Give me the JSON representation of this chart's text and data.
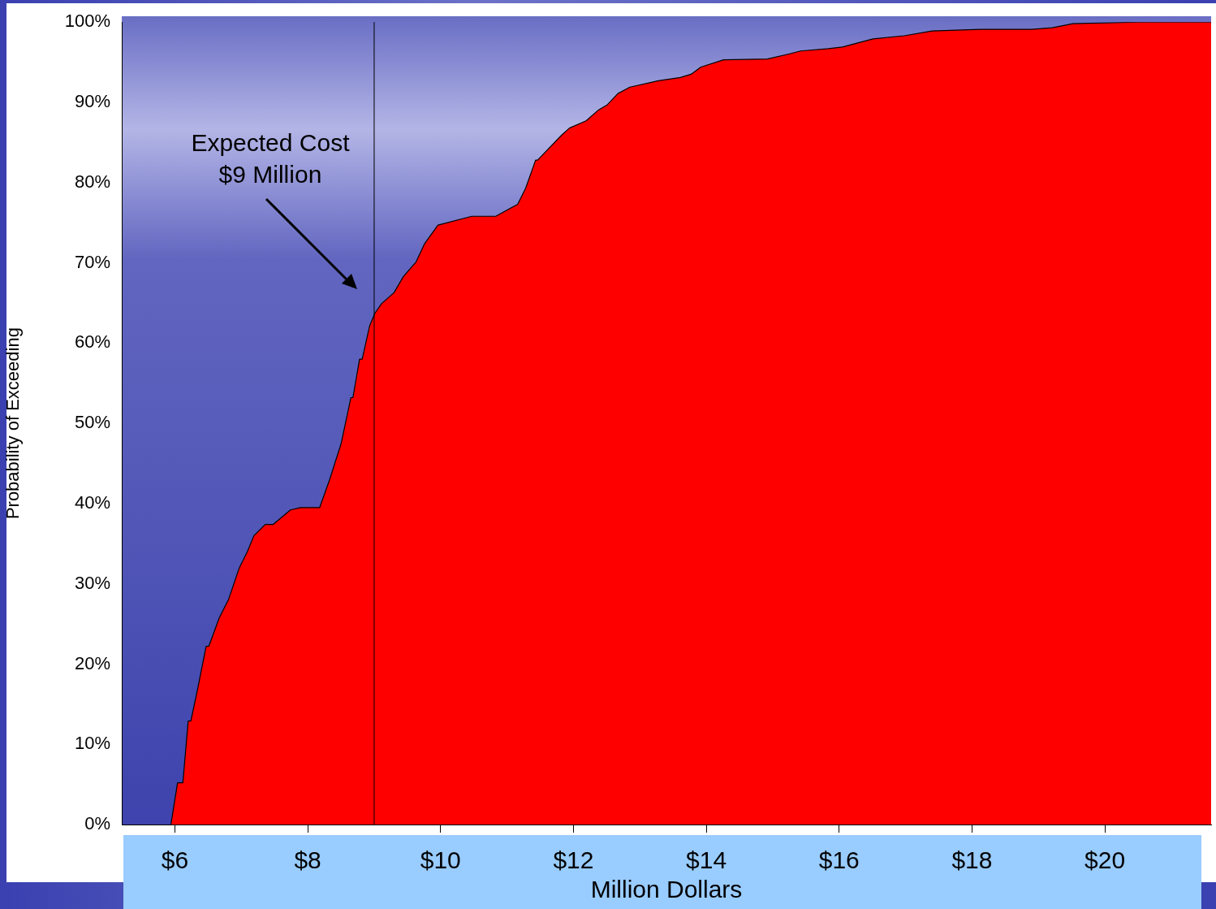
{
  "chart_data": {
    "type": "area",
    "xlabel": "Million Dollars",
    "ylabel": "Probability of Exceeding",
    "x": [
      5.94,
      6.04,
      6.12,
      6.2,
      6.24,
      6.34,
      6.47,
      6.51,
      6.67,
      6.81,
      6.97,
      7.09,
      7.19,
      7.36,
      7.48,
      7.74,
      7.89,
      8.18,
      8.33,
      8.5,
      8.65,
      8.68,
      8.78,
      8.82,
      8.93,
      9.01,
      9.11,
      9.3,
      9.44,
      9.63,
      9.76,
      9.96,
      10.47,
      10.83,
      11.16,
      11.28,
      11.43,
      11.46,
      11.82,
      11.94,
      12.19,
      12.37,
      12.51,
      12.67,
      12.85,
      13.28,
      13.61,
      13.77,
      13.92,
      14.26,
      14.92,
      15.23,
      15.42,
      15.84,
      16.05,
      16.51,
      16.98,
      17.4,
      18.13,
      18.9,
      19.21,
      19.52,
      20.51,
      21.6
    ],
    "series": [
      {
        "color": "#ff0000",
        "values": [
          0,
          5.2,
          5.2,
          12.9,
          12.9,
          16.8,
          22.2,
          22.2,
          25.8,
          28.1,
          32,
          34,
          36,
          37.4,
          37.4,
          39.2,
          39.5,
          39.5,
          43,
          47.4,
          53.2,
          53.2,
          58,
          58,
          62.1,
          63.7,
          64.9,
          66.3,
          68.3,
          70.1,
          72.4,
          74.7,
          75.8,
          75.8,
          77.3,
          79.3,
          82.8,
          82.8,
          85.9,
          86.8,
          87.7,
          89,
          89.7,
          91.1,
          91.9,
          92.7,
          93.1,
          93.5,
          94.4,
          95.3,
          95.4,
          96,
          96.4,
          96.7,
          96.9,
          97.9,
          98.3,
          98.9,
          99.1,
          99.1,
          99.3,
          99.8,
          100,
          100
        ]
      }
    ],
    "xlim": [
      5.2,
      21.6
    ],
    "xticks": [
      {
        "value": 6,
        "label": "$6"
      },
      {
        "value": 8,
        "label": "$8"
      },
      {
        "value": 10,
        "label": "$10"
      },
      {
        "value": 12,
        "label": "$12"
      },
      {
        "value": 14,
        "label": "$14"
      },
      {
        "value": 16,
        "label": "$16"
      },
      {
        "value": 18,
        "label": "$18"
      },
      {
        "value": 20,
        "label": "$20"
      }
    ],
    "ylim": [
      0,
      100
    ],
    "yticks": [
      {
        "value": 0,
        "label": "0%"
      },
      {
        "value": 10,
        "label": "10%"
      },
      {
        "value": 20,
        "label": "20%"
      },
      {
        "value": 30,
        "label": "30%"
      },
      {
        "value": 40,
        "label": "40%"
      },
      {
        "value": 50,
        "label": "50%"
      },
      {
        "value": 60,
        "label": "60%"
      },
      {
        "value": 70,
        "label": "70%"
      },
      {
        "value": 80,
        "label": "80%"
      },
      {
        "value": 90,
        "label": "90%"
      },
      {
        "value": 100,
        "label": "100%"
      }
    ],
    "ref_lines": [
      {
        "axis": "x",
        "value": 9,
        "label": "Expected Cost\n$9 Million",
        "color": "#000000"
      }
    ],
    "grid": false,
    "legend": false,
    "marker": "none",
    "line_style": "solid"
  }
}
